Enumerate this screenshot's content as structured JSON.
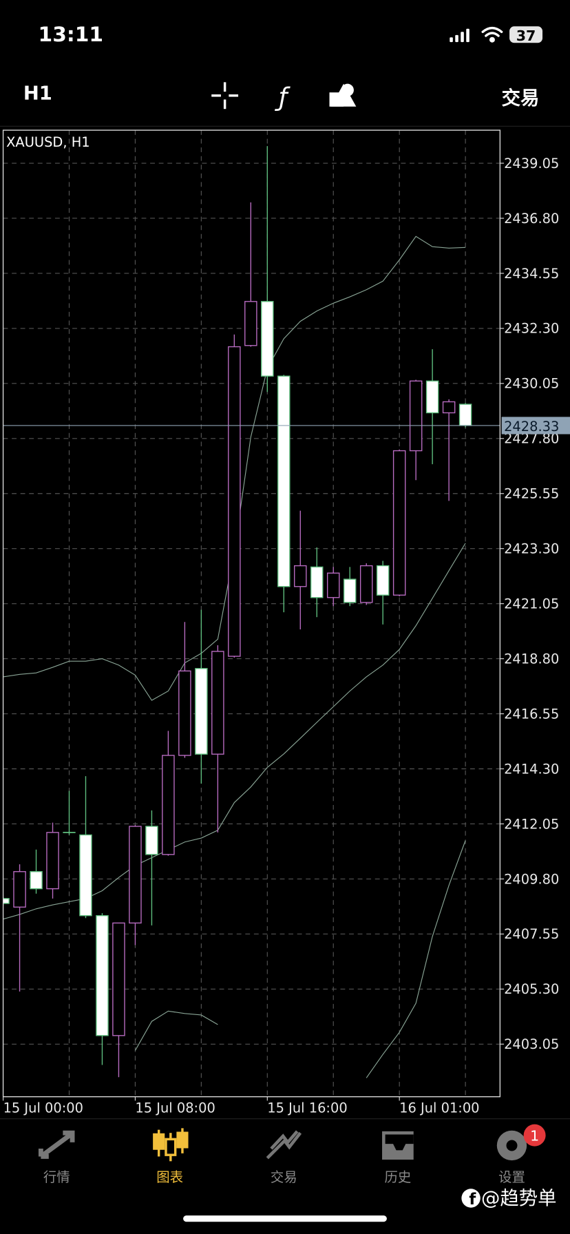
{
  "status_bar": {
    "time": "13:11",
    "battery": "37"
  },
  "toolbar": {
    "timeframe": "H1",
    "trade": "交易"
  },
  "chart_data": {
    "type": "candlestick",
    "title": "XAUUSD, H1",
    "categories": [
      "15 Jul 00:00",
      null,
      null,
      null,
      null,
      null,
      null,
      null,
      "15 Jul 08:00",
      null,
      null,
      null,
      null,
      null,
      null,
      null,
      "15 Jul 16:00",
      null,
      null,
      null,
      null,
      null,
      null,
      null,
      "16 Jul 01:00",
      null,
      null,
      null,
      null
    ],
    "open": [
      2409.0,
      2408.65,
      2410.1,
      2409.4,
      2411.7,
      2411.6,
      2408.3,
      2403.4,
      2408.0,
      2411.95,
      2410.8,
      2414.85,
      2418.4,
      2414.9,
      2418.9,
      2431.6,
      2433.4,
      2430.35,
      2421.75,
      2422.55,
      2421.3,
      2422.05,
      2421.1,
      2422.6,
      2421.4,
      2427.3,
      2430.15,
      2428.85,
      2429.2
    ],
    "high": [
      2409.05,
      2410.4,
      2411.0,
      2412.1,
      2413.4,
      2414.0,
      2408.4,
      2408.0,
      2412.0,
      2412.6,
      2415.85,
      2420.3,
      2420.8,
      2419.35,
      2432.05,
      2437.45,
      2439.75,
      2430.4,
      2424.85,
      2423.35,
      2422.55,
      2422.55,
      2422.7,
      2422.8,
      2427.35,
      2430.2,
      2431.45,
      2429.4,
      2429.25
    ],
    "low": [
      2408.7,
      2405.2,
      2409.2,
      2409.0,
      2411.6,
      2408.2,
      2402.2,
      2401.7,
      2407.1,
      2407.9,
      2410.75,
      2414.75,
      2413.7,
      2411.7,
      2418.85,
      2431.55,
      2429.7,
      2420.7,
      2420.0,
      2420.5,
      2420.95,
      2420.95,
      2421.0,
      2420.2,
      2421.35,
      2426.1,
      2426.75,
      2425.25,
      2428.25
    ],
    "close": [
      2408.8,
      2410.1,
      2409.4,
      2411.7,
      2411.7,
      2408.3,
      2403.4,
      2408.0,
      2411.95,
      2410.8,
      2414.85,
      2418.3,
      2414.9,
      2419.1,
      2431.55,
      2433.4,
      2430.35,
      2421.75,
      2422.6,
      2421.3,
      2422.3,
      2421.1,
      2422.6,
      2421.4,
      2427.3,
      2430.15,
      2428.85,
      2429.3,
      2428.33
    ],
    "up_color": "#b96cc2",
    "down_color": "#ffffff",
    "down_edge_color": "#5fbf7f",
    "bands": [
      {
        "color": "#8aa596",
        "values": [
          2418.06,
          2418.16,
          2418.22,
          2418.45,
          2418.7,
          2418.7,
          2418.8,
          2418.54,
          2418.13,
          2417.1,
          2417.48,
          2418.63,
          2419.02,
          2419.6,
          2423.2,
          2427.86,
          2430.66,
          2431.88,
          2432.59,
          2433.01,
          2433.33,
          2433.59,
          2433.88,
          2434.23,
          2435.1,
          2436.06,
          2435.64,
          2435.58,
          2435.61
        ]
      },
      {
        "color": "#8aa596",
        "values": [
          2408.16,
          2408.35,
          2408.58,
          2408.74,
          2408.87,
          2409.0,
          2409.32,
          2409.86,
          2410.35,
          2410.67,
          2410.99,
          2411.31,
          2411.47,
          2411.79,
          2412.92,
          2413.56,
          2414.36,
          2414.91,
          2415.55,
          2416.2,
          2416.84,
          2417.48,
          2418.06,
          2418.54,
          2419.18,
          2420.15,
          2421.27,
          2422.4,
          2423.52
        ]
      },
      {
        "color": "#8aa596",
        "values": [
          null,
          null,
          null,
          null,
          null,
          null,
          null,
          null,
          2402.79,
          2403.98,
          2404.4,
          2404.3,
          2404.24,
          2403.85,
          null,
          null,
          null,
          null,
          null,
          null,
          null,
          null,
          2401.67,
          2402.63,
          2403.53,
          2404.72,
          2407.45,
          2409.54,
          2411.37
        ]
      }
    ],
    "current_price": 2428.33,
    "current_price_color": "#8fa3b5",
    "ylim": [
      2400.9,
      2440.4
    ],
    "yticks": [
      2439.05,
      {
        "value": 2436.8,
        "label": "2436.80"
      },
      2434.55,
      {
        "value": 2432.3,
        "label": "2432.30"
      },
      2430.05,
      {
        "value": 2427.8,
        "label": "2427.80"
      },
      2425.55,
      {
        "value": 2423.3,
        "label": "2423.30"
      },
      2421.05,
      {
        "value": 2418.8,
        "label": "2418.80"
      },
      2416.55,
      {
        "value": 2414.3,
        "label": "2414.30"
      },
      2412.05,
      {
        "value": 2409.8,
        "label": "2409.80"
      },
      2407.55,
      {
        "value": 2405.3,
        "label": "2405.30"
      },
      2403.05
    ],
    "grid": true
  },
  "bottom_nav": {
    "items": [
      {
        "label": "行情"
      },
      {
        "label": "图表",
        "active": true
      },
      {
        "label": "交易"
      },
      {
        "label": "历史"
      },
      {
        "label": "设置"
      }
    ],
    "badge": "1"
  },
  "watermark": "@趋势单"
}
